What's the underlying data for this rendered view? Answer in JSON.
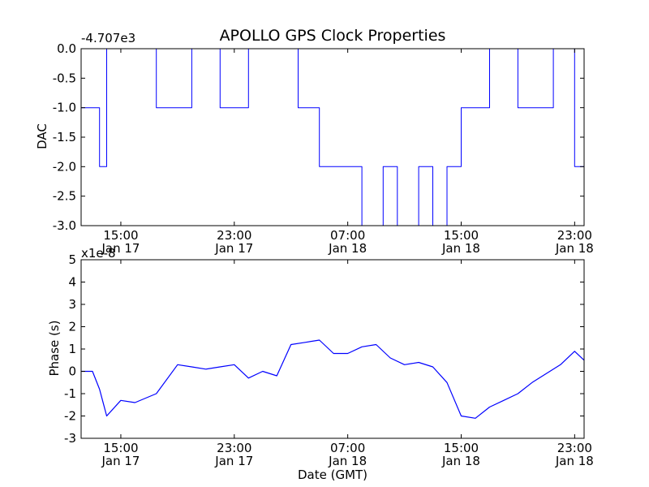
{
  "chart_data": [
    {
      "type": "line",
      "title": "APOLLO GPS Clock Properties",
      "xlabel": "",
      "ylabel": "DAC",
      "offset_text": "-4.707e3",
      "ylim": [
        -3.0,
        0.0
      ],
      "yticks": [
        "0.0",
        "-0.5",
        "-1.0",
        "-1.5",
        "-2.0",
        "-2.5",
        "-3.0"
      ],
      "xlim": [
        "2010-01-17 12:12",
        "2010-01-18 23:40"
      ],
      "xticks": [
        {
          "time": "15:00",
          "date": "Jan 17"
        },
        {
          "time": "23:00",
          "date": "Jan 17"
        },
        {
          "time": "07:00",
          "date": "Jan 18"
        },
        {
          "time": "15:00",
          "date": "Jan 18"
        },
        {
          "time": "23:00",
          "date": "Jan 18"
        }
      ],
      "color": "#0000ff",
      "series": [
        {
          "x": [
            "Jan 17 12:12",
            "Jan 17 12:35",
            "Jan 17 13:30",
            "Jan 17 14:00",
            "Jan 17 17:30",
            "Jan 17 20:00",
            "Jan 17 22:00",
            "Jan 18 00:00",
            "Jan 18 02:00",
            "Jan 18 03:30",
            "Jan 18 05:00",
            "Jan 18 07:00",
            "Jan 18 08:00",
            "Jan 18 09:30",
            "Jan 18 10:30",
            "Jan 18 12:00",
            "Jan 18 13:00",
            "Jan 18 14:00",
            "Jan 18 15:00",
            "Jan 18 17:00",
            "Jan 18 19:00",
            "Jan 18 21:30",
            "Jan 18 23:00",
            "Jan 18 23:40"
          ],
          "y": [
            -1.0,
            -1.0,
            -2.0,
            0.0,
            -1.0,
            0.0,
            -1.0,
            0.0,
            0.0,
            -1.0,
            -2.0,
            -2.0,
            -3.0,
            -2.0,
            -3.0,
            -2.0,
            -3.0,
            -2.0,
            -1.0,
            0.0,
            -1.0,
            0.0,
            -2.0,
            -1.0
          ]
        }
      ]
    },
    {
      "type": "line",
      "title": "",
      "xlabel": "Date (GMT)",
      "ylabel": "Phase (s)",
      "offset_text": "x1e-8",
      "ylim": [
        -3,
        5
      ],
      "yticks": [
        "5",
        "4",
        "3",
        "2",
        "1",
        "0",
        "-1",
        "-2",
        "-3"
      ],
      "xlim": [
        "2010-01-17 12:12",
        "2010-01-18 23:40"
      ],
      "xticks": [
        {
          "time": "15:00",
          "date": "Jan 17"
        },
        {
          "time": "23:00",
          "date": "Jan 17"
        },
        {
          "time": "07:00",
          "date": "Jan 18"
        },
        {
          "time": "15:00",
          "date": "Jan 18"
        },
        {
          "time": "23:00",
          "date": "Jan 18"
        }
      ],
      "color": "#0000ff",
      "series": [
        {
          "x": [
            "Jan 17 12:12",
            "Jan 17 13:00",
            "Jan 17 13:30",
            "Jan 17 14:00",
            "Jan 17 15:00",
            "Jan 17 16:00",
            "Jan 17 17:30",
            "Jan 17 19:00",
            "Jan 17 20:00",
            "Jan 17 21:00",
            "Jan 17 22:00",
            "Jan 17 23:00",
            "Jan 18 00:00",
            "Jan 18 01:00",
            "Jan 18 02:00",
            "Jan 18 03:00",
            "Jan 18 04:00",
            "Jan 18 05:00",
            "Jan 18 06:00",
            "Jan 18 07:00",
            "Jan 18 08:00",
            "Jan 18 09:00",
            "Jan 18 10:00",
            "Jan 18 11:00",
            "Jan 18 12:00",
            "Jan 18 13:00",
            "Jan 18 14:00",
            "Jan 18 15:00",
            "Jan 18 16:00",
            "Jan 18 17:00",
            "Jan 18 18:00",
            "Jan 18 19:00",
            "Jan 18 20:00",
            "Jan 18 21:00",
            "Jan 18 22:00",
            "Jan 18 23:00",
            "Jan 18 23:40"
          ],
          "y": [
            0.0,
            0.0,
            -0.8,
            -2.0,
            -1.3,
            -1.4,
            -1.0,
            0.3,
            0.2,
            0.1,
            0.2,
            0.3,
            -0.3,
            0.0,
            -0.2,
            1.2,
            1.3,
            1.4,
            0.8,
            0.8,
            1.1,
            1.2,
            0.6,
            0.3,
            0.4,
            0.2,
            -0.5,
            -2.0,
            -2.1,
            -1.6,
            -1.3,
            -1.0,
            -0.5,
            -0.1,
            0.3,
            0.9,
            0.5
          ]
        }
      ]
    }
  ]
}
